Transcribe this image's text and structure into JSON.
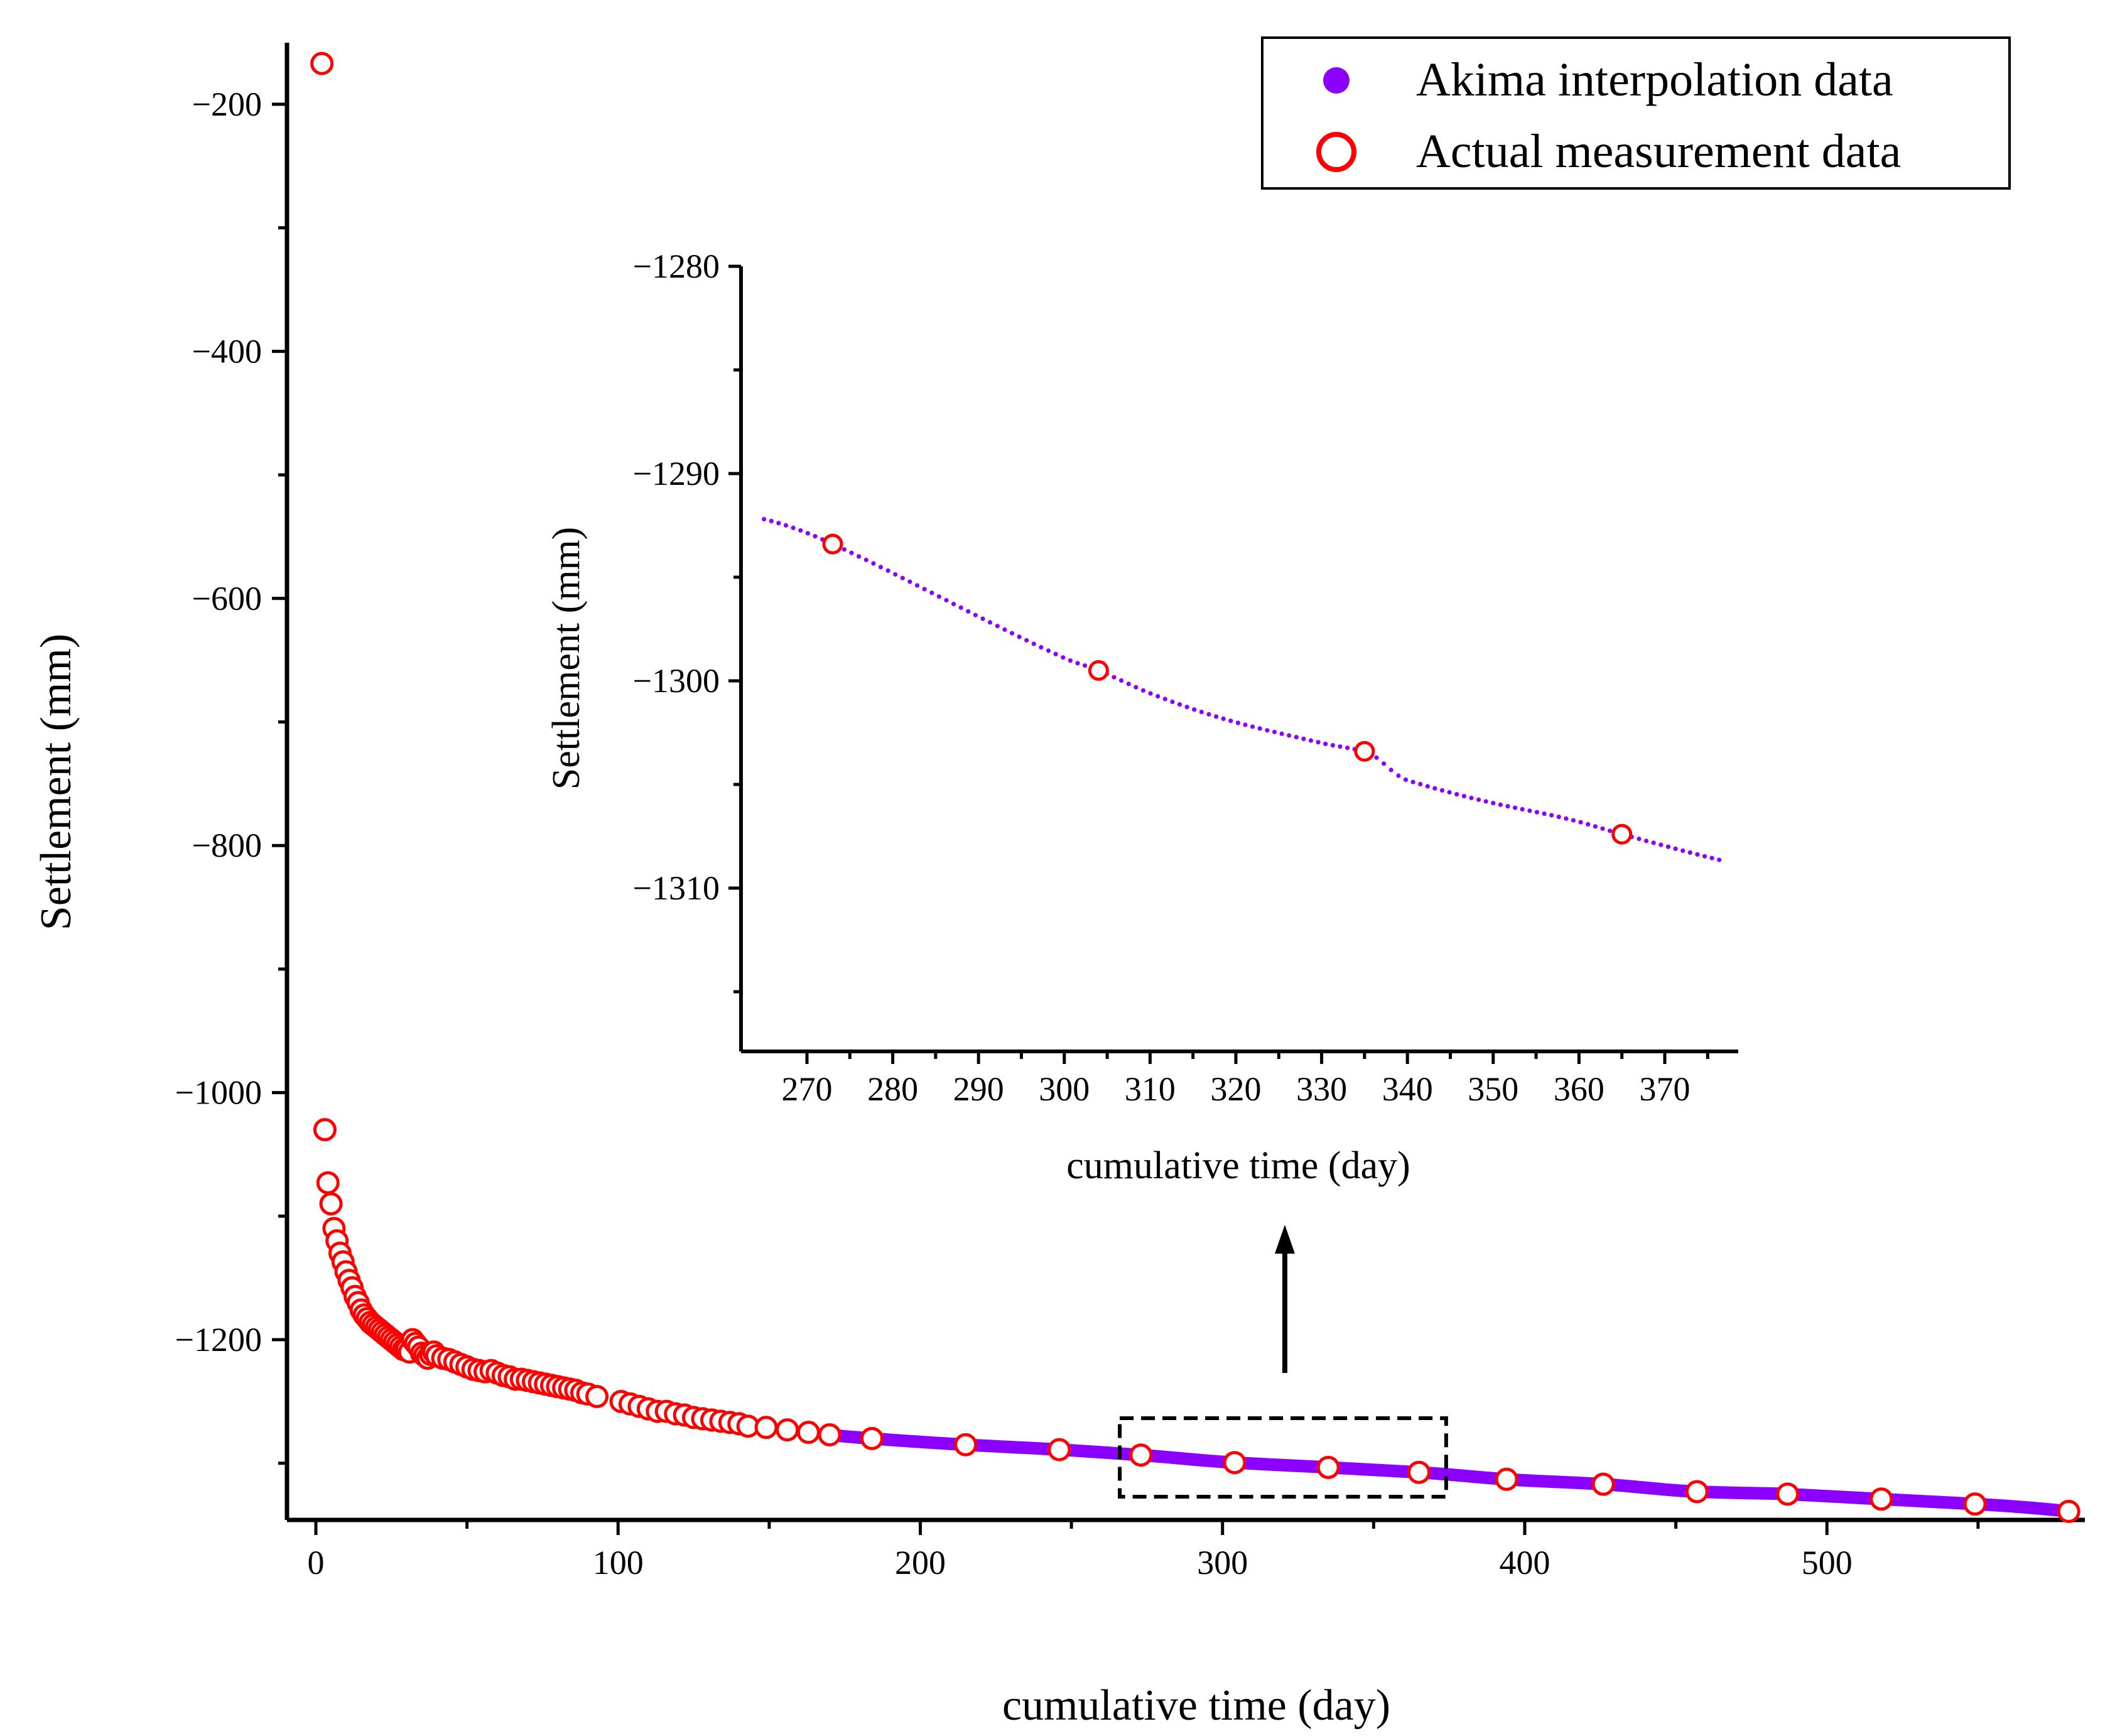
{
  "colors": {
    "interp": "#8b00ff",
    "measure": "#ff0000",
    "axis": "#000000"
  },
  "legend": {
    "interp_label": "Akima interpolation data",
    "measure_label": "Actual measurement data"
  },
  "chart_data": [
    {
      "type": "scatter",
      "role": "main",
      "xlabel": "cumulative time (day)",
      "ylabel": "Settlement (mm)",
      "xlim": [
        -10,
        585
      ],
      "ylim": [
        -1350,
        -150
      ],
      "xticks": [
        0,
        100,
        200,
        300,
        400,
        500
      ],
      "yticks": [
        -200,
        -400,
        -600,
        -800,
        -1000,
        -1200
      ],
      "series": [
        {
          "name": "Actual measurement data",
          "x": [
            2,
            3,
            4,
            5,
            6,
            7,
            8,
            9,
            10,
            11,
            12,
            13,
            14,
            15,
            16,
            17,
            18,
            19,
            20,
            21,
            22,
            23,
            24,
            25,
            26,
            27,
            28,
            29,
            30,
            31,
            32,
            33,
            34,
            35,
            36,
            37,
            38,
            39,
            40,
            42,
            44,
            46,
            48,
            50,
            52,
            54,
            56,
            58,
            60,
            62,
            64,
            66,
            68,
            70,
            72,
            74,
            76,
            78,
            80,
            82,
            84,
            86,
            88,
            90,
            93,
            101,
            104,
            107,
            110,
            113,
            116,
            119,
            122,
            125,
            128,
            131,
            134,
            137,
            140,
            143,
            149,
            156,
            163,
            170,
            184,
            215,
            246,
            273,
            304,
            335,
            365,
            394,
            426,
            457,
            487,
            518,
            549,
            580
          ],
          "y": [
            -167,
            -1030,
            -1073,
            -1090,
            -1110,
            -1120,
            -1130,
            -1137,
            -1145,
            -1152,
            -1158,
            -1165,
            -1170,
            -1176,
            -1180,
            -1183,
            -1186,
            -1188,
            -1190,
            -1192,
            -1194,
            -1196,
            -1198,
            -1200,
            -1202,
            -1204,
            -1206,
            -1208,
            -1208,
            -1210,
            -1200,
            -1203,
            -1206,
            -1211,
            -1213,
            -1215,
            -1212,
            -1210,
            -1213,
            -1215,
            -1216,
            -1218,
            -1220,
            -1222,
            -1224,
            -1225,
            -1226,
            -1225,
            -1227,
            -1229,
            -1230,
            -1232,
            -1232,
            -1233,
            -1234,
            -1235,
            -1236,
            -1237,
            -1238,
            -1239,
            -1240,
            -1241,
            -1243,
            -1244,
            -1246,
            -1250,
            -1252,
            -1254,
            -1256,
            -1258,
            -1258,
            -1260,
            -1261,
            -1263,
            -1264,
            -1265,
            -1266,
            -1267,
            -1268,
            -1270,
            -1271,
            -1273,
            -1275,
            -1277,
            -1280,
            -1285,
            -1289,
            -1293.4,
            -1299.5,
            -1303.4,
            -1307.4,
            -1313,
            -1317,
            -1323,
            -1325,
            -1329,
            -1333,
            -1339
          ]
        },
        {
          "name": "Akima interpolation data",
          "x_range": [
            170,
            580
          ],
          "x": [
            170,
            184,
            215,
            246,
            273,
            304,
            335,
            365,
            394,
            426,
            457,
            470,
            487,
            518,
            549,
            580
          ],
          "y": [
            -1277,
            -1280,
            -1285,
            -1289,
            -1293.4,
            -1299.5,
            -1303.4,
            -1307.4,
            -1313,
            -1317,
            -1323,
            -1324,
            -1325,
            -1329,
            -1333,
            -1339
          ]
        }
      ],
      "zoom_box": {
        "x": [
          266,
          374
        ],
        "y": [
          -1315,
          -1262
        ]
      }
    },
    {
      "type": "scatter",
      "role": "inset",
      "xlabel": "cumulative time (day)",
      "ylabel": "Settlement (mm)",
      "xlim": [
        265,
        377
      ],
      "ylim": [
        -1318,
        -1280
      ],
      "xticks": [
        270,
        280,
        290,
        300,
        310,
        320,
        330,
        340,
        350,
        360,
        370
      ],
      "yticks": [
        -1280,
        -1290,
        -1300,
        -1310
      ],
      "series": [
        {
          "name": "Actual measurement data",
          "x": [
            273,
            304,
            335,
            365
          ],
          "y": [
            -1293.4,
            -1299.5,
            -1303.4,
            -1307.4
          ]
        },
        {
          "name": "Akima interpolation data",
          "x": [
            265,
            273,
            280,
            290,
            300,
            304,
            310,
            320,
            330,
            335,
            340,
            350,
            360,
            365,
            377
          ],
          "y": [
            -1292.2,
            -1293.4,
            -1294.8,
            -1296.9,
            -1298.9,
            -1299.5,
            -1300.6,
            -1302.0,
            -1303.0,
            -1303.4,
            -1304.8,
            -1305.9,
            -1306.8,
            -1307.4,
            -1308.7
          ]
        }
      ]
    }
  ]
}
